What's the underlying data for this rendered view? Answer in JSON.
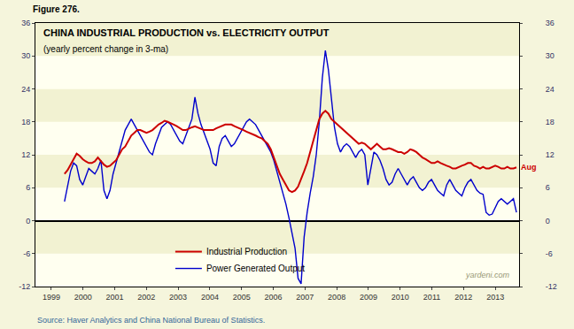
{
  "chart_data": {
    "type": "line",
    "figure_label": "Figure 276.",
    "title": "CHINA INDUSTRIAL PRODUCTION vs. ELECTRICITY OUTPUT",
    "subtitle": "(yearly percent change in 3-ma)",
    "source": "Source: Haver Analytics and China National Bureau of Statistics.",
    "watermark": "yardeni.com",
    "annotations": [
      {
        "text": "Aug",
        "x": 2013.667,
        "y": 9.7,
        "color": "#CC0000"
      }
    ],
    "x": [
      1999.417,
      1999.5126,
      1999.6083,
      1999.7039,
      1999.7996,
      1999.8952,
      1999.9908,
      2000.0865,
      2000.1821,
      2000.2777,
      2000.3734,
      2000.469,
      2000.5647,
      2000.6603,
      2000.7559,
      2000.8516,
      2000.9472,
      2001.0428,
      2001.1385,
      2001.2341,
      2001.3298,
      2001.4254,
      2001.521,
      2001.6167,
      2001.7123,
      2001.8079,
      2001.9036,
      2001.9992,
      2002.0949,
      2002.1905,
      2002.2861,
      2002.3818,
      2002.4774,
      2002.573,
      2002.6687,
      2002.7643,
      2002.86,
      2002.9556,
      2003.0512,
      2003.1469,
      2003.2425,
      2003.3381,
      2003.4338,
      2003.5294,
      2003.6251,
      2003.7207,
      2003.8163,
      2003.912,
      2004.0076,
      2004.1032,
      2004.1989,
      2004.2945,
      2004.3902,
      2004.4858,
      2004.5814,
      2004.6771,
      2004.7727,
      2004.8683,
      2004.964,
      2005.0596,
      2005.1553,
      2005.2509,
      2005.3465,
      2005.4422,
      2005.5378,
      2005.6334,
      2005.7291,
      2005.8247,
      2005.9204,
      2006.016,
      2006.1116,
      2006.2073,
      2006.3029,
      2006.3985,
      2006.4942,
      2006.5898,
      2006.6855,
      2006.7811,
      2006.8767,
      2006.9724,
      2007.068,
      2007.1636,
      2007.2593,
      2007.3549,
      2007.4506,
      2007.5462,
      2007.6418,
      2007.7375,
      2007.8331,
      2007.9287,
      2008.0244,
      2008.12,
      2008.2157,
      2008.3113,
      2008.4069,
      2008.5026,
      2008.5982,
      2008.6938,
      2008.7895,
      2008.8851,
      2008.9808,
      2009.0764,
      2009.172,
      2009.2677,
      2009.3633,
      2009.4589,
      2009.5546,
      2009.6502,
      2009.7459,
      2009.8415,
      2009.9371,
      2010.0328,
      2010.1284,
      2010.224,
      2010.3197,
      2010.4153,
      2010.511,
      2010.6066,
      2010.7022,
      2010.7979,
      2010.8935,
      2010.9891,
      2011.0848,
      2011.1804,
      2011.2761,
      2011.3717,
      2011.4673,
      2011.563,
      2011.6586,
      2011.7542,
      2011.8499,
      2011.9455,
      2012.0412,
      2012.1368,
      2012.2324,
      2012.3281,
      2012.4237,
      2012.5193,
      2012.615,
      2012.7106,
      2012.8063,
      2012.9019,
      2012.9975,
      2013.0932,
      2013.1888,
      2013.2844,
      2013.3801,
      2013.4757,
      2013.5714,
      2013.667
    ],
    "series": [
      {
        "name": "Industrial Production",
        "color": "#CC0000",
        "values": [
          8.5,
          9.2,
          10.2,
          11.2,
          12.2,
          11.8,
          11.2,
          10.8,
          10.5,
          10.5,
          10.8,
          11.5,
          10.8,
          10.2,
          9.8,
          10.0,
          10.5,
          11.0,
          12.0,
          13.0,
          13.5,
          14.5,
          15.5,
          16.0,
          16.5,
          16.5,
          16.2,
          16.0,
          16.2,
          16.5,
          17.0,
          17.5,
          17.8,
          18.2,
          18.0,
          17.8,
          17.5,
          17.2,
          16.8,
          16.5,
          16.5,
          16.8,
          17.0,
          17.2,
          17.0,
          16.8,
          16.5,
          16.5,
          16.5,
          16.5,
          16.8,
          17.0,
          17.2,
          17.5,
          17.5,
          17.5,
          17.2,
          17.0,
          16.8,
          16.5,
          16.2,
          16.0,
          15.8,
          15.5,
          15.2,
          15.0,
          14.5,
          14.0,
          13.0,
          11.5,
          10.0,
          8.5,
          7.5,
          6.5,
          5.5,
          5.2,
          5.5,
          6.2,
          7.5,
          9.0,
          10.5,
          12.5,
          14.5,
          16.5,
          18.5,
          19.5,
          20.0,
          19.5,
          18.5,
          18.0,
          17.5,
          17.0,
          16.5,
          16.0,
          15.5,
          15.0,
          14.5,
          14.0,
          14.2,
          14.0,
          13.5,
          13.0,
          13.5,
          14.0,
          13.5,
          13.0,
          13.0,
          13.2,
          13.0,
          12.8,
          12.5,
          12.5,
          12.2,
          12.5,
          13.0,
          12.8,
          12.5,
          12.0,
          11.5,
          11.2,
          10.8,
          10.5,
          10.5,
          10.8,
          10.5,
          10.2,
          10.0,
          9.8,
          9.5,
          9.5,
          9.8,
          10.0,
          10.2,
          10.5,
          10.5,
          10.0,
          9.8,
          9.5,
          9.8,
          9.5,
          9.5,
          9.8,
          10.0,
          9.8,
          9.5,
          9.5,
          9.8,
          9.5,
          9.5,
          9.7
        ]
      },
      {
        "name": "Power Generated Output",
        "color": "#0000CC",
        "values": [
          3.5,
          6.0,
          9.0,
          10.5,
          10.0,
          7.5,
          6.5,
          8.0,
          9.5,
          9.0,
          8.5,
          9.5,
          11.0,
          5.5,
          4.0,
          5.5,
          8.5,
          10.5,
          12.5,
          14.5,
          16.5,
          17.5,
          18.5,
          17.5,
          16.5,
          15.5,
          14.5,
          13.5,
          12.5,
          12.0,
          14.0,
          15.5,
          17.0,
          17.5,
          18.0,
          17.5,
          16.5,
          15.5,
          14.5,
          14.0,
          15.5,
          17.0,
          18.5,
          22.5,
          19.5,
          17.5,
          16.0,
          14.5,
          13.0,
          10.5,
          10.0,
          13.5,
          15.0,
          15.5,
          14.5,
          13.5,
          14.0,
          15.0,
          16.0,
          17.0,
          18.0,
          18.5,
          18.0,
          17.5,
          16.5,
          15.5,
          14.5,
          13.5,
          12.5,
          11.0,
          9.0,
          7.0,
          5.0,
          3.0,
          0.5,
          -2.0,
          -5.0,
          -10.5,
          -11.5,
          -3.0,
          1.5,
          5.0,
          8.0,
          12.0,
          18.0,
          26.0,
          31.0,
          27.5,
          22.0,
          17.0,
          14.0,
          12.5,
          13.5,
          14.0,
          13.5,
          12.5,
          11.5,
          12.5,
          13.0,
          12.0,
          6.5,
          9.5,
          12.5,
          12.0,
          11.0,
          9.5,
          7.5,
          6.5,
          7.0,
          8.5,
          9.5,
          8.5,
          7.5,
          6.5,
          7.5,
          8.0,
          7.0,
          6.0,
          5.5,
          6.0,
          7.0,
          7.5,
          6.5,
          5.5,
          5.0,
          4.5,
          6.5,
          7.5,
          6.5,
          5.5,
          5.0,
          4.5,
          6.0,
          7.0,
          7.5,
          6.5,
          5.5,
          5.0,
          4.8,
          1.5,
          1.0,
          1.2,
          2.5,
          3.5,
          4.0,
          3.5,
          3.0,
          3.5,
          4.0,
          1.5
        ]
      }
    ],
    "xlim": [
      1998.5,
      2013.75
    ],
    "xticks": [
      1999,
      2000,
      2001,
      2002,
      2003,
      2004,
      2005,
      2006,
      2007,
      2008,
      2009,
      2010,
      2011,
      2012,
      2013
    ],
    "ylim": [
      -12,
      36
    ],
    "yticks": [
      -12,
      -6,
      0,
      6,
      12,
      18,
      24,
      30,
      36
    ],
    "grid": true,
    "legend": "lower left"
  }
}
